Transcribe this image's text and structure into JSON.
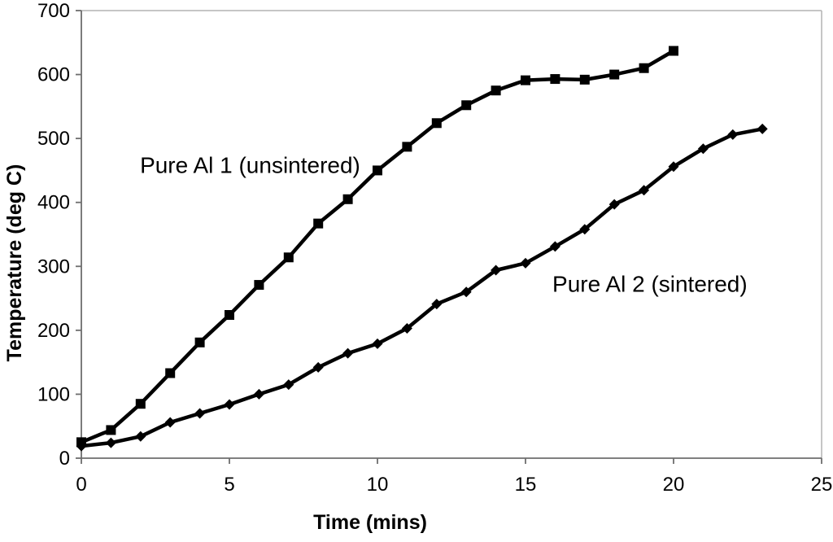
{
  "chart_data": {
    "type": "line",
    "title": "",
    "xlabel": "Time (mins)",
    "ylabel": "Temperature (deg C)",
    "xlim": [
      0,
      25
    ],
    "ylim": [
      0,
      700
    ],
    "xticks": [
      "0",
      "5",
      "10",
      "15",
      "20",
      "25"
    ],
    "yticks": [
      "0",
      "100",
      "200",
      "300",
      "400",
      "500",
      "600",
      "700"
    ],
    "grid": false,
    "legend_position": "none",
    "series": [
      {
        "name": "Pure Al 1 (unsintered)",
        "marker": "square",
        "x": [
          0,
          1,
          2,
          3,
          4,
          5,
          6,
          7,
          8,
          9,
          10,
          11,
          12,
          13,
          14,
          15,
          16,
          17,
          18,
          19,
          20
        ],
        "values": [
          25,
          44,
          85,
          133,
          181,
          224,
          271,
          314,
          367,
          405,
          450,
          487,
          524,
          552,
          575,
          591,
          593,
          592,
          600,
          610,
          637
        ]
      },
      {
        "name": "Pure Al 2 (sintered)",
        "marker": "diamond",
        "x": [
          0,
          1,
          2,
          3,
          4,
          5,
          6,
          7,
          8,
          9,
          10,
          11,
          12,
          13,
          14,
          15,
          16,
          17,
          18,
          19,
          20,
          21,
          22,
          23
        ],
        "values": [
          19,
          24,
          34,
          56,
          70,
          84,
          100,
          115,
          142,
          164,
          179,
          203,
          241,
          260,
          294,
          305,
          331,
          358,
          397,
          419,
          456,
          484,
          506,
          515
        ]
      }
    ],
    "annotations": [
      {
        "text": "Pure Al 1 (unsintered)",
        "x": 5.7,
        "y": 459
      },
      {
        "text": "Pure Al 2 (sintered)",
        "x": 19.2,
        "y": 273
      }
    ],
    "colors": {
      "series": "#000000",
      "axis": "#6e6e6e",
      "frame": "#b4b4b4",
      "text": "#000000"
    }
  }
}
